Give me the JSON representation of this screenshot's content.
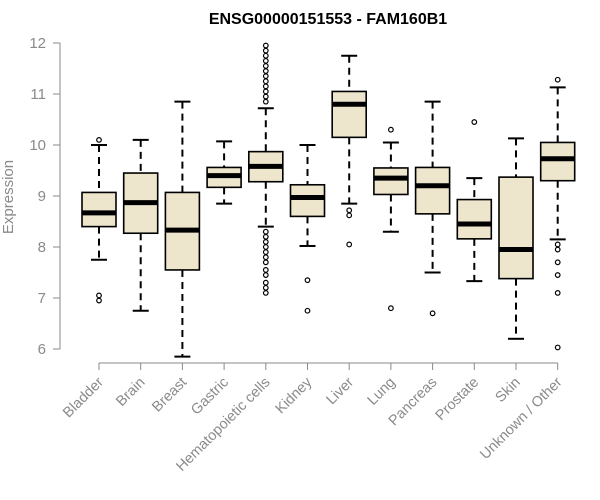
{
  "chart_data": {
    "type": "boxplot",
    "title": "ENSG00000151553 - FAM160B1",
    "xlabel": "",
    "ylabel": "Expression",
    "ylim": [
      5.8,
      12.0
    ],
    "yticks": [
      6,
      7,
      8,
      9,
      10,
      11,
      12
    ],
    "box_color": "#ede6cd",
    "categories": [
      "Bladder",
      "Brain",
      "Breast",
      "Gastric",
      "Hematopoietic cells",
      "Kidney",
      "Liver",
      "Lung",
      "Pancreas",
      "Prostate",
      "Skin",
      "Unknown / Other"
    ],
    "series": [
      {
        "name": "Bladder",
        "low": 7.75,
        "q1": 8.4,
        "median": 8.67,
        "q3": 9.07,
        "high": 10.0,
        "outliers": [
          10.1,
          7.05,
          6.95
        ]
      },
      {
        "name": "Brain",
        "low": 6.75,
        "q1": 8.27,
        "median": 8.87,
        "q3": 9.45,
        "high": 10.1,
        "outliers": []
      },
      {
        "name": "Breast",
        "low": 5.85,
        "q1": 7.55,
        "median": 8.33,
        "q3": 9.07,
        "high": 10.85,
        "outliers": []
      },
      {
        "name": "Gastric",
        "low": 8.85,
        "q1": 9.17,
        "median": 9.4,
        "q3": 9.56,
        "high": 10.07,
        "outliers": []
      },
      {
        "name": "Hematopoietic cells",
        "low": 8.4,
        "q1": 9.28,
        "median": 9.58,
        "q3": 9.87,
        "high": 10.72,
        "outliers": [
          11.95,
          11.85,
          11.75,
          11.65,
          11.55,
          11.45,
          11.35,
          11.25,
          11.15,
          11.05,
          10.95,
          10.85,
          8.3,
          8.2,
          8.1,
          8.0,
          7.9,
          7.8,
          7.7,
          7.55,
          7.45,
          7.3,
          7.2,
          7.1
        ]
      },
      {
        "name": "Kidney",
        "low": 8.02,
        "q1": 8.6,
        "median": 8.97,
        "q3": 9.22,
        "high": 10.0,
        "outliers": [
          7.35,
          6.75
        ]
      },
      {
        "name": "Liver",
        "low": 8.85,
        "q1": 10.15,
        "median": 10.8,
        "q3": 11.05,
        "high": 11.75,
        "outliers": [
          8.72,
          8.62,
          8.05
        ]
      },
      {
        "name": "Lung",
        "low": 8.3,
        "q1": 9.03,
        "median": 9.35,
        "q3": 9.55,
        "high": 10.05,
        "outliers": [
          10.3,
          6.8
        ]
      },
      {
        "name": "Pancreas",
        "low": 7.5,
        "q1": 8.65,
        "median": 9.2,
        "q3": 9.56,
        "high": 10.85,
        "outliers": [
          6.7
        ]
      },
      {
        "name": "Prostate",
        "low": 7.33,
        "q1": 8.16,
        "median": 8.45,
        "q3": 8.93,
        "high": 9.35,
        "outliers": [
          10.45
        ]
      },
      {
        "name": "Skin",
        "low": 6.2,
        "q1": 7.38,
        "median": 7.95,
        "q3": 9.37,
        "high": 10.13,
        "outliers": []
      },
      {
        "name": "Unknown / Other",
        "low": 8.15,
        "q1": 9.3,
        "median": 9.73,
        "q3": 10.05,
        "high": 11.13,
        "outliers": [
          11.28,
          8.05,
          7.95,
          7.7,
          7.45,
          7.1,
          6.03
        ]
      }
    ]
  }
}
